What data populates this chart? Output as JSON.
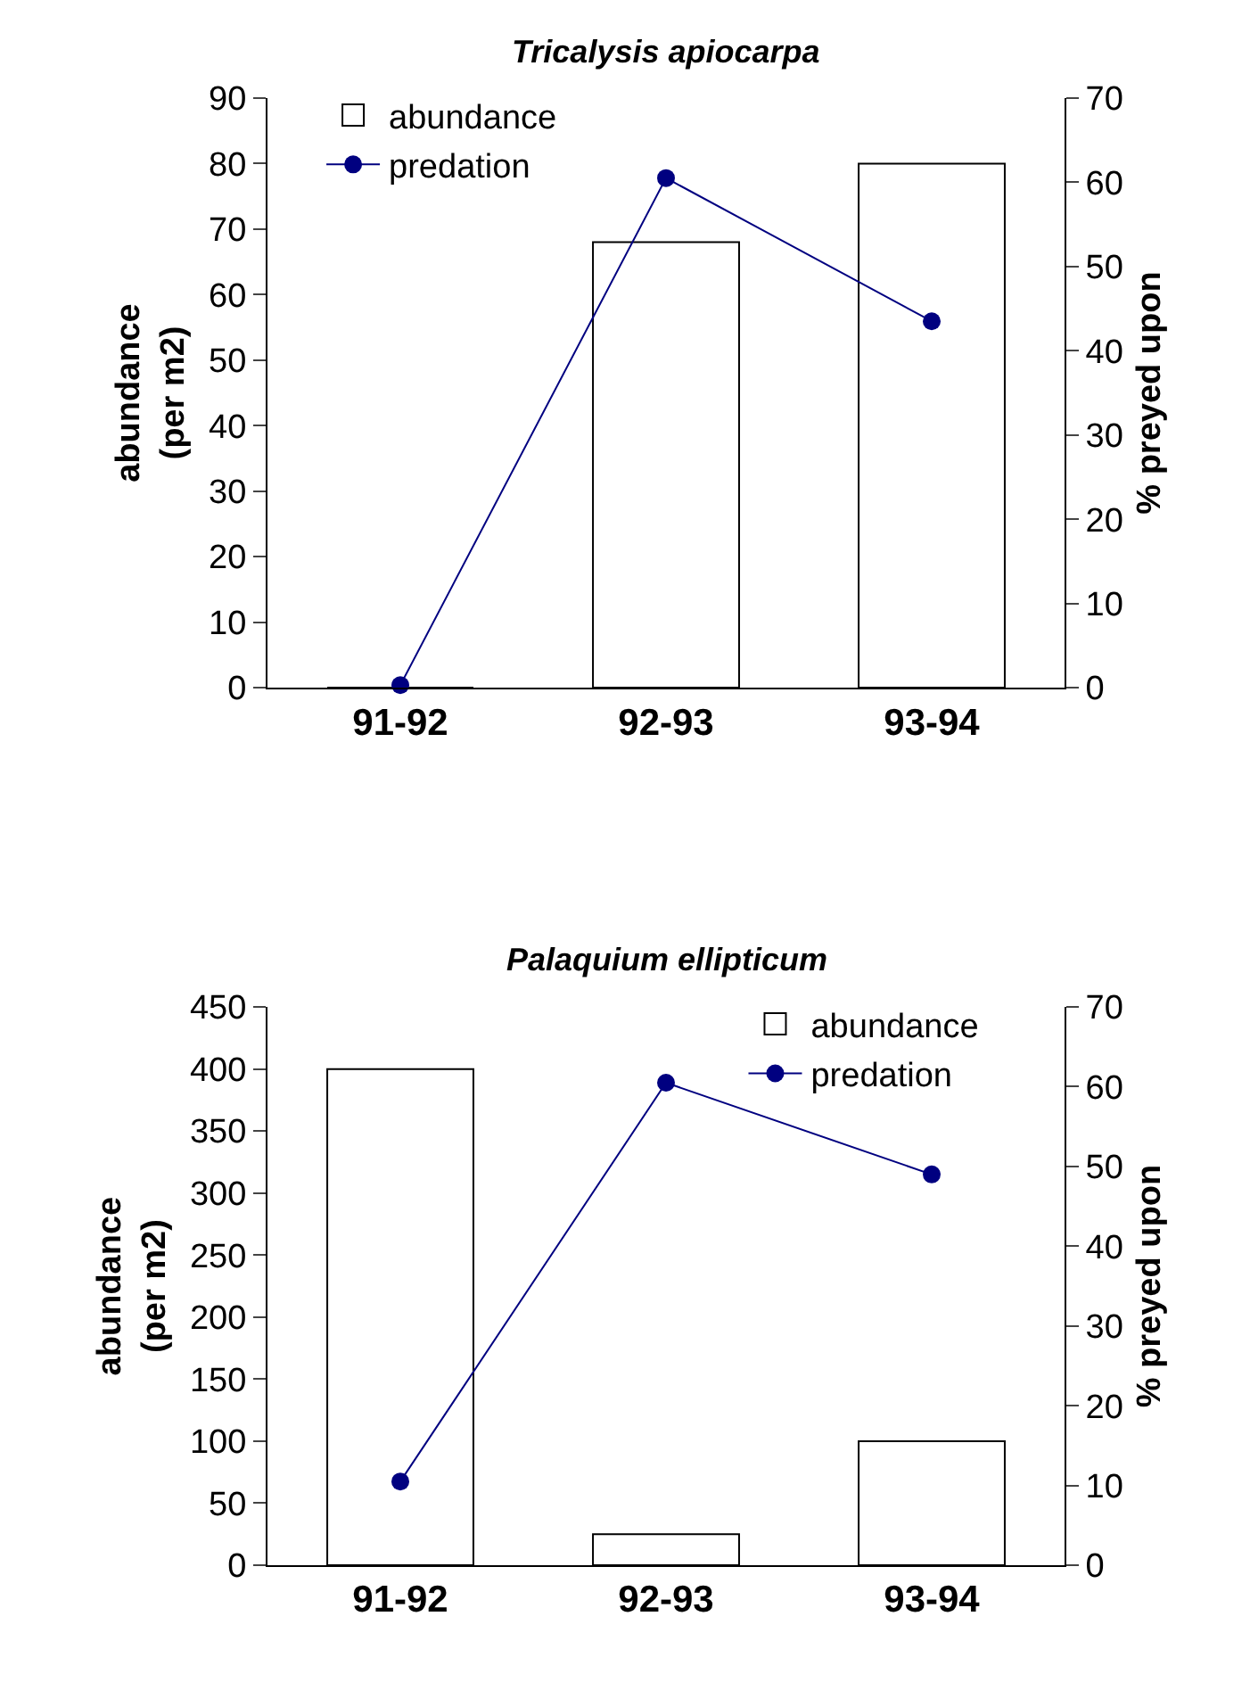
{
  "chart_data": [
    {
      "type": "bar",
      "title": "Tricalysis apiocarpa",
      "ylabel": "abundance\n(per m2)",
      "y2label": "% preyed upon",
      "categories": [
        "91-92",
        "92-93",
        "93-94"
      ],
      "series": [
        {
          "name": "abundance",
          "color": "#ffffff",
          "values": [
            0,
            68,
            80
          ]
        },
        {
          "name": "predation",
          "type": "line",
          "axis": "y2",
          "color": "#000080",
          "marker": "circle",
          "values": [
            0.3,
            60.5,
            43.5
          ]
        }
      ],
      "ylim": [
        0,
        90
      ],
      "yticks": [
        0,
        10,
        20,
        30,
        40,
        50,
        60,
        70,
        80,
        90
      ],
      "y2lim": [
        0,
        70
      ],
      "y2ticks": [
        0,
        10,
        20,
        30,
        40,
        50,
        60,
        70
      ],
      "legend": "top left"
    },
    {
      "type": "bar",
      "title": "Palaquium ellipticum",
      "ylabel": "abundance\n(per m2)",
      "y2label": "% preyed upon",
      "categories": [
        "91-92",
        "92-93",
        "93-94"
      ],
      "series": [
        {
          "name": "abundance",
          "color": "#ffffff",
          "values": [
            400,
            25,
            100
          ]
        },
        {
          "name": "predation",
          "type": "line",
          "axis": "y2",
          "color": "#000080",
          "marker": "circle",
          "values": [
            10.5,
            60.5,
            49
          ]
        }
      ],
      "ylim": [
        0,
        450
      ],
      "yticks": [
        0,
        50,
        100,
        150,
        200,
        250,
        300,
        350,
        400,
        450
      ],
      "y2lim": [
        0,
        70
      ],
      "y2ticks": [
        0,
        10,
        20,
        30,
        40,
        50,
        60,
        70
      ],
      "legend": "top right"
    }
  ]
}
